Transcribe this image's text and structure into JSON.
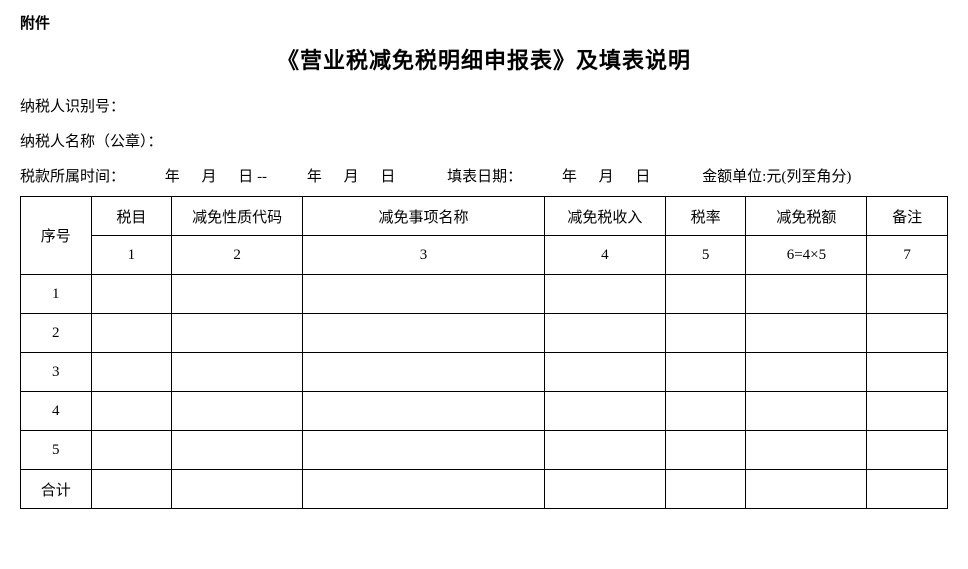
{
  "attachment_label": "附件",
  "title": "《营业税减免税明细申报表》及填表说明",
  "taxpayer_id_label": "纳税人识别号：",
  "taxpayer_name_label": "纳税人名称（公章）：",
  "date_line": {
    "period_label": "税款所属时间：",
    "year": "年",
    "month": "月",
    "day": "日",
    "dash": "--",
    "fill_date_label": "填表日期：",
    "unit_label": "金额单位:元(列至角分)"
  },
  "columns": {
    "seq": "序号",
    "tax_item": "税目",
    "reduction_code": "减免性质代码",
    "reduction_name": "减免事项名称",
    "reduction_income": "减免税收入",
    "tax_rate": "税率",
    "reduction_amount": "减免税额",
    "remark": "备注"
  },
  "col_numbers": {
    "c1": "1",
    "c2": "2",
    "c3": "3",
    "c4": "4",
    "c5": "5",
    "c6": "6=4×5",
    "c7": "7"
  },
  "rows": {
    "r1": "1",
    "r2": "2",
    "r3": "3",
    "r4": "4",
    "r5": "5",
    "total": "合计"
  }
}
